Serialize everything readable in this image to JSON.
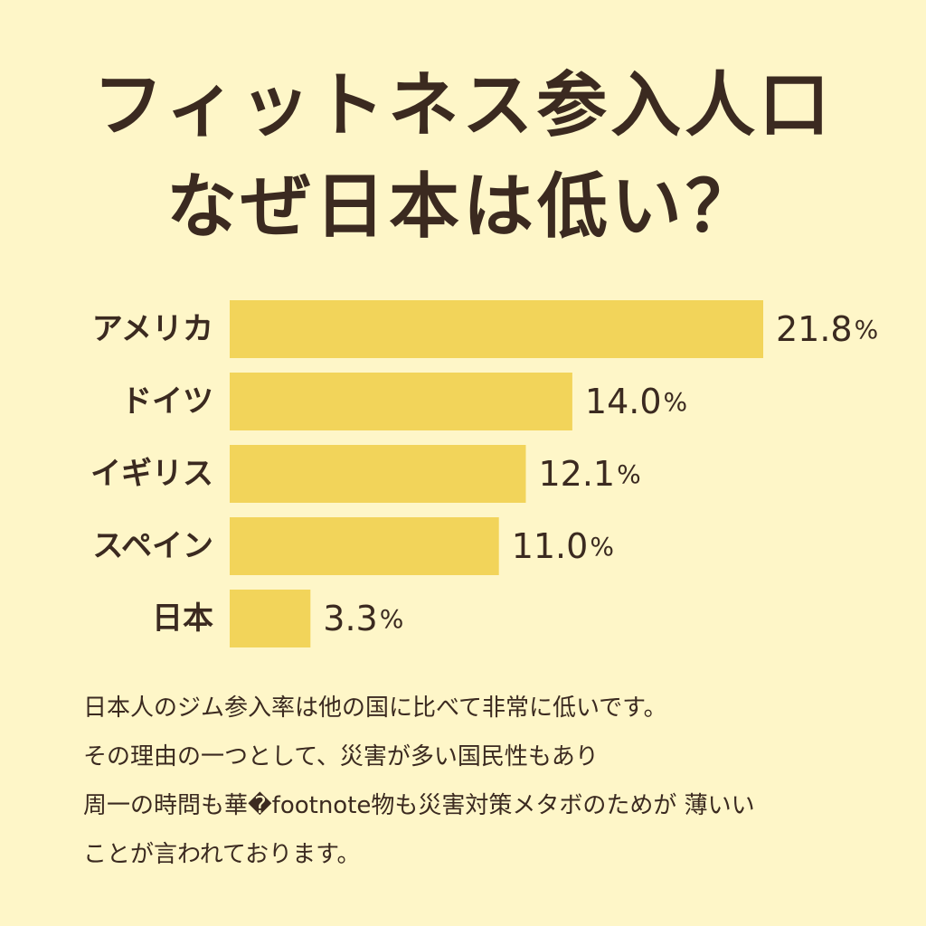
{
  "header": {
    "title_line1": "フィットネス参入人口",
    "title_line2": "なぜ日本は低い？"
  },
  "colors": {
    "background": "#fef6c8",
    "bar": "#f2d45a",
    "text": "#3b2a20"
  },
  "chart_data": {
    "type": "bar",
    "orientation": "horizontal",
    "categories": [
      "アメリカ",
      "ドイツ",
      "イギリス",
      "スペイン",
      "日本"
    ],
    "values": [
      21.8,
      14.0,
      12.1,
      11.0,
      3.3
    ],
    "value_labels": [
      "21.8",
      "14.0",
      "12.1",
      "11.0",
      "3.3"
    ],
    "unit": "%",
    "xlim": [
      0,
      21.8
    ],
    "grid": false,
    "axes_visible": false
  },
  "description": {
    "lines": [
      "日本人のジム参入率は他の国に比べて非常に低いです。",
      "その理由の一つとして、災害が多い国民性もあり",
      "周一の時問も華�footnote物も災害対策メタボのためが 薄いい",
      "ことが言われております。"
    ]
  }
}
